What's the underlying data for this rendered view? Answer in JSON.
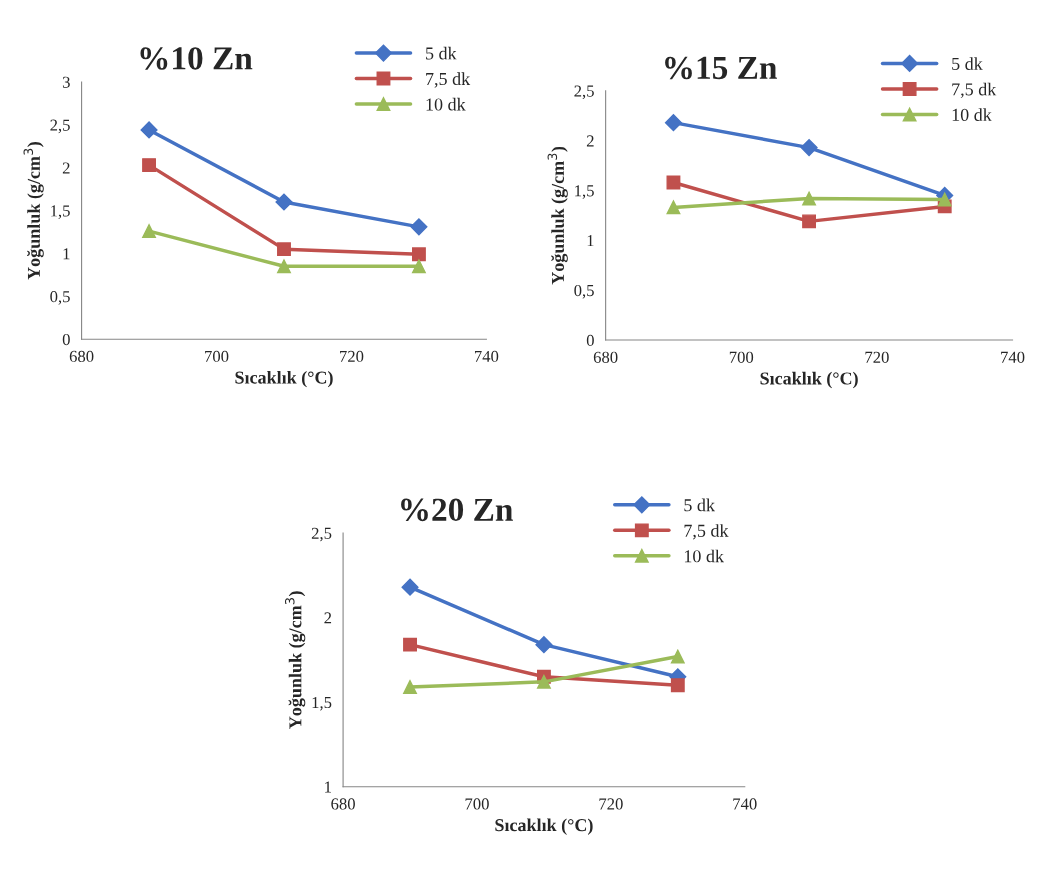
{
  "chart_data": [
    {
      "type": "line",
      "title": "%10 Zn",
      "xlabel": "Sıcaklık (°C)",
      "ylabel": "Yoğunluk (g/cm$^{3}$)",
      "x": [
        690,
        710,
        730
      ],
      "xlim": [
        680,
        740
      ],
      "xticks": [
        680,
        700,
        720,
        740
      ],
      "ylim": [
        0,
        3
      ],
      "yticks": [
        0,
        {
          "value": 0.5,
          "label": "0,5"
        },
        1,
        {
          "value": 1.5,
          "label": "1,5"
        },
        2,
        {
          "value": 2.5,
          "label": "2,5"
        },
        3
      ],
      "grid": false,
      "legend": "top right",
      "series": [
        {
          "name": "5 dk",
          "color": "#4472c4",
          "marker": "diamond",
          "values": [
            2.44,
            1.6,
            1.31
          ]
        },
        {
          "name": "7,5 dk",
          "color": "#c0504d",
          "marker": "square",
          "values": [
            2.03,
            1.05,
            0.99
          ]
        },
        {
          "name": "10 dk",
          "color": "#9bbb59",
          "marker": "triangle",
          "values": [
            1.26,
            0.85,
            0.85
          ]
        }
      ]
    },
    {
      "type": "line",
      "title": "%15 Zn",
      "xlabel": "Sıcaklık (°C)",
      "ylabel": "Yoğunluk (g/cm$^{3}$)",
      "x": [
        690,
        710,
        730
      ],
      "xlim": [
        680,
        740
      ],
      "xticks": [
        680,
        700,
        720,
        740
      ],
      "ylim": [
        0,
        2.5
      ],
      "yticks": [
        0,
        {
          "value": 0.5,
          "label": "0,5"
        },
        1,
        {
          "value": 1.5,
          "label": "1,5"
        },
        2,
        {
          "value": 2.5,
          "label": "2,5"
        }
      ],
      "grid": false,
      "legend": "top right",
      "series": [
        {
          "name": "5 dk",
          "color": "#4472c4",
          "marker": "diamond",
          "values": [
            2.18,
            1.93,
            1.45
          ]
        },
        {
          "name": "7,5 dk",
          "color": "#c0504d",
          "marker": "square",
          "values": [
            1.58,
            1.19,
            1.34
          ]
        },
        {
          "name": "10 dk",
          "color": "#9bbb59",
          "marker": "triangle",
          "values": [
            1.33,
            1.42,
            1.41
          ]
        }
      ]
    },
    {
      "type": "line",
      "title": "%20 Zn",
      "xlabel": "Sıcaklık (°C)",
      "ylabel": "Yoğunluk (g/cm$^{3}$)",
      "x": [
        690,
        710,
        730
      ],
      "xlim": [
        680,
        740
      ],
      "xticks": [
        680,
        700,
        720,
        740
      ],
      "ylim": [
        1,
        2.5
      ],
      "yticks": [
        1,
        {
          "value": 1.5,
          "label": "1,5"
        },
        2,
        {
          "value": 2.5,
          "label": "2,5"
        }
      ],
      "grid": false,
      "legend": "top right",
      "series": [
        {
          "name": "5 dk",
          "color": "#4472c4",
          "marker": "diamond",
          "values": [
            2.18,
            1.84,
            1.65
          ]
        },
        {
          "name": "7,5 dk",
          "color": "#c0504d",
          "marker": "square",
          "values": [
            1.84,
            1.65,
            1.6
          ]
        },
        {
          "name": "10 dk",
          "color": "#9bbb59",
          "marker": "triangle",
          "values": [
            1.59,
            1.62,
            1.77
          ]
        }
      ]
    }
  ]
}
